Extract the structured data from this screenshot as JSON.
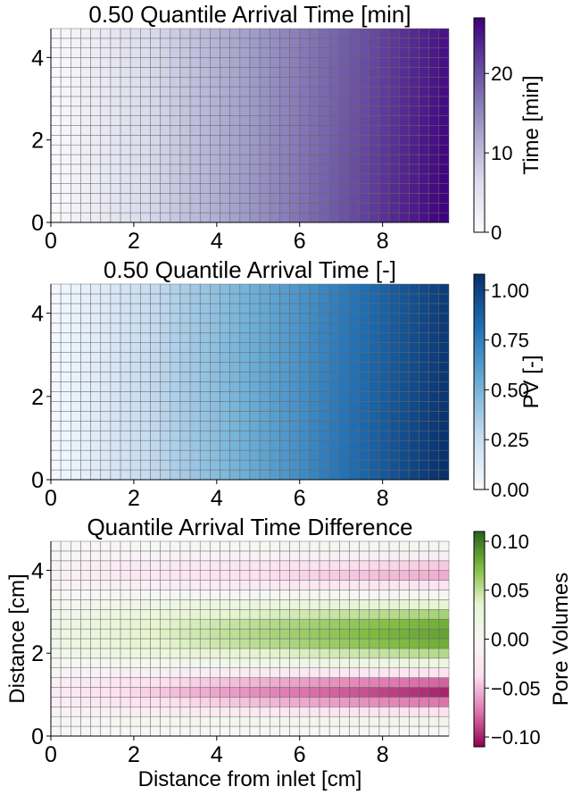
{
  "chart_data": [
    {
      "type": "heatmap",
      "title": "0.50 Quantile Arrival Time [min]",
      "xlabel": "",
      "ylabel": "",
      "xlim": [
        0,
        9.6
      ],
      "ylim": [
        0,
        4.7
      ],
      "x_ticks": [
        "0",
        "2",
        "4",
        "6",
        "8"
      ],
      "y_ticks": [
        "0",
        "2",
        "4"
      ],
      "grid": {
        "columns": 40,
        "rows": 20
      },
      "values_description": "value grows linearly with distance from inlet, slightly higher near bottom",
      "value_range": [
        0,
        27
      ],
      "colormap": [
        "#fcfbfd",
        "#dadaeb",
        "#9e9ac8",
        "#6a51a3",
        "#3f007d"
      ],
      "colorbar": {
        "label": "Time [min]",
        "range": [
          0,
          27
        ],
        "ticks": [
          "0",
          "10",
          "20"
        ]
      }
    },
    {
      "type": "heatmap",
      "title": "0.50 Quantile Arrival Time [-]",
      "xlabel": "",
      "ylabel": "",
      "xlim": [
        0,
        9.6
      ],
      "ylim": [
        0,
        4.7
      ],
      "x_ticks": [
        "0",
        "2",
        "4",
        "6",
        "8"
      ],
      "y_ticks": [
        "0",
        "2",
        "4"
      ],
      "grid": {
        "columns": 40,
        "rows": 20
      },
      "value_range": [
        0,
        1.08
      ],
      "colormap": [
        "#f7fbff",
        "#c6dbef",
        "#6baed6",
        "#2171b5",
        "#08306b"
      ],
      "colorbar": {
        "label": "PV [-]",
        "range": [
          0,
          1.08
        ],
        "ticks": [
          "0.00",
          "0.25",
          "0.50",
          "0.75",
          "1.00"
        ]
      }
    },
    {
      "type": "heatmap",
      "title": "Quantile Arrival Time Difference",
      "xlabel": "Distance from inlet [cm]",
      "ylabel": "Distance [cm]",
      "xlim": [
        0,
        9.6
      ],
      "ylim": [
        0,
        4.7
      ],
      "x_ticks": [
        "0",
        "2",
        "4",
        "6",
        "8"
      ],
      "y_ticks": [
        "0",
        "2",
        "4"
      ],
      "grid": {
        "columns": 40,
        "rows": 20
      },
      "value_range": [
        -0.11,
        0.11
      ],
      "row_profile": [
        0.0,
        0.015,
        -0.035,
        -0.075,
        -0.1,
        -0.08,
        -0.03,
        0.02,
        0.055,
        0.08,
        0.085,
        0.08,
        0.06,
        0.035,
        0.005,
        -0.03,
        -0.055,
        -0.045,
        -0.015,
        0.008
      ],
      "colormap": [
        "#8e0152",
        "#de77ae",
        "#fde0ef",
        "#f7f7f7",
        "#e6f5d0",
        "#7fbc41",
        "#276419"
      ],
      "colorbar": {
        "label": "Pore Volumes",
        "range": [
          -0.11,
          0.11
        ],
        "ticks": [
          "−0.10",
          "−0.05",
          "0.00",
          "0.05",
          "0.10"
        ]
      }
    }
  ]
}
